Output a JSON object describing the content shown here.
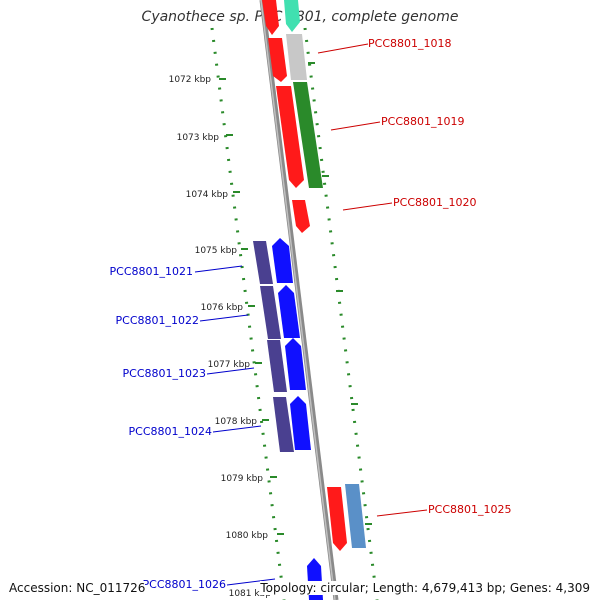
{
  "title": "Cyanothece sp. PCC 8801, complete genome",
  "footer": {
    "accession": "Accession: NC_011726",
    "topology": "Topology: circular; Length: 4,679,413 bp; Genes: 4,309"
  },
  "colors": {
    "backbone": "#8a8a8a",
    "ruler_dots": "#2a8a2a",
    "red": "#ff1a1a",
    "green": "#2a8a2a",
    "gray": "#c8c8c8",
    "teal": "#40e0b0",
    "navy": "#4a4090",
    "blue": "#1010ff",
    "steel": "#5a90c8",
    "label_red": "#cc0000",
    "label_blue": "#0000cc"
  },
  "ruler_labels": [
    "1072 kbp",
    "1073 kbp",
    "1074 kbp",
    "1075 kbp",
    "1076 kbp",
    "1077 kbp",
    "1078 kbp",
    "1079 kbp",
    "1080 kbp",
    "1081 kbp"
  ],
  "gene_labels": {
    "g1018": "PCC8801_1018",
    "g1019": "PCC8801_1019",
    "g1020": "PCC8801_1020",
    "g1021": "PCC8801_1021",
    "g1022": "PCC8801_1022",
    "g1023": "PCC8801_1023",
    "g1024": "PCC8801_1024",
    "g1025": "PCC8801_1025",
    "g1026": "PCC8801_1026"
  }
}
